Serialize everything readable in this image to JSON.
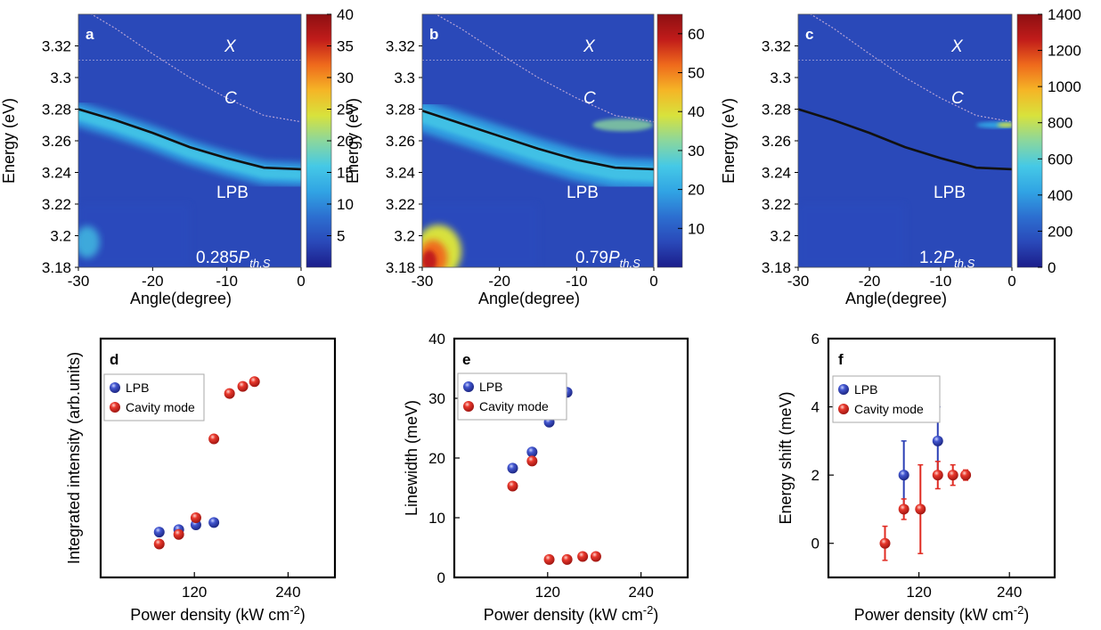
{
  "colorbar_colors": [
    "#1b1d8a",
    "#2a49b9",
    "#2c6fd0",
    "#31a4e4",
    "#45c9e6",
    "#8bd79d",
    "#d8e23c",
    "#f5b526",
    "#ef6a1c",
    "#c11c1a",
    "#8d0f12"
  ],
  "series_colors": {
    "LPB": "#2b3fb5",
    "Cavity mode": "#e02b22"
  },
  "chart_data": [
    {
      "id": "a",
      "type": "heatmap",
      "panel_label": "a",
      "xlabel": "Angle(degree)",
      "ylabel": "Energy (eV)",
      "xlim": [
        -30,
        0
      ],
      "ylim": [
        3.18,
        3.34
      ],
      "xticks": [
        "-30",
        "-20",
        "-10",
        "0"
      ],
      "yticks": [
        "3.18",
        "3.2",
        "3.22",
        "3.24",
        "3.26",
        "3.28",
        "3.3",
        "3.32"
      ],
      "colorbar": {
        "range": [
          0,
          40
        ],
        "ticks": [
          "5",
          "10",
          "15",
          "20",
          "25",
          "30",
          "35",
          "40"
        ]
      },
      "annotations": {
        "x_label": "X",
        "c_label": "C",
        "lpb_label": "LPB",
        "power_prefix": "0.285",
        "power_symbol": "P",
        "power_sub": "th,S"
      },
      "x_line_energy": 3.311,
      "c_curve": [
        [
          -30,
          3.345
        ],
        [
          -25,
          3.331
        ],
        [
          -20,
          3.315
        ],
        [
          -15,
          3.3
        ],
        [
          -10,
          3.287
        ],
        [
          -5,
          3.276
        ],
        [
          0,
          3.272
        ]
      ],
      "lpb_curve": [
        [
          -30,
          3.28
        ],
        [
          -25,
          3.273
        ],
        [
          -20,
          3.265
        ],
        [
          -15,
          3.256
        ],
        [
          -10,
          3.249
        ],
        [
          -5,
          3.243
        ],
        [
          0,
          3.242
        ]
      ]
    },
    {
      "id": "b",
      "type": "heatmap",
      "panel_label": "b",
      "xlabel": "Angle(degree)",
      "ylabel": "Energy (eV)",
      "xlim": [
        -30,
        0
      ],
      "ylim": [
        3.18,
        3.34
      ],
      "xticks": [
        "-30",
        "-20",
        "-10",
        "0"
      ],
      "yticks": [
        "3.18",
        "3.2",
        "3.22",
        "3.24",
        "3.26",
        "3.28",
        "3.3",
        "3.32"
      ],
      "colorbar": {
        "range": [
          0,
          65
        ],
        "ticks": [
          "10",
          "20",
          "30",
          "40",
          "50",
          "60"
        ]
      },
      "annotations": {
        "x_label": "X",
        "c_label": "C",
        "lpb_label": "LPB",
        "power_prefix": "0.79",
        "power_symbol": "P",
        "power_sub": "th,S"
      },
      "x_line_energy": 3.311,
      "c_curve": [
        [
          -30,
          3.345
        ],
        [
          -25,
          3.331
        ],
        [
          -20,
          3.315
        ],
        [
          -15,
          3.3
        ],
        [
          -10,
          3.287
        ],
        [
          -5,
          3.276
        ],
        [
          0,
          3.272
        ]
      ],
      "lpb_curve": [
        [
          -30,
          3.279
        ],
        [
          -25,
          3.271
        ],
        [
          -20,
          3.263
        ],
        [
          -15,
          3.255
        ],
        [
          -10,
          3.248
        ],
        [
          -5,
          3.243
        ],
        [
          0,
          3.242
        ]
      ]
    },
    {
      "id": "c",
      "type": "heatmap",
      "panel_label": "c",
      "xlabel": "Angle(degree)",
      "ylabel": "Energy (eV)",
      "xlim": [
        -30,
        0
      ],
      "ylim": [
        3.18,
        3.34
      ],
      "xticks": [
        "-30",
        "-20",
        "-10",
        "0"
      ],
      "yticks": [
        "3.18",
        "3.2",
        "3.22",
        "3.24",
        "3.26",
        "3.28",
        "3.3",
        "3.32"
      ],
      "colorbar": {
        "range": [
          0,
          1400
        ],
        "ticks": [
          "0",
          "200",
          "400",
          "600",
          "800",
          "1000",
          "1200",
          "1400"
        ]
      },
      "annotations": {
        "x_label": "X",
        "c_label": "C",
        "lpb_label": "LPB",
        "power_prefix": "1.2",
        "power_symbol": "P",
        "power_sub": "th,S"
      },
      "x_line_energy": 3.311,
      "c_curve": [
        [
          -30,
          3.345
        ],
        [
          -25,
          3.331
        ],
        [
          -20,
          3.315
        ],
        [
          -15,
          3.3
        ],
        [
          -10,
          3.287
        ],
        [
          -5,
          3.276
        ],
        [
          0,
          3.272
        ]
      ],
      "lpb_curve": [
        [
          -30,
          3.28
        ],
        [
          -25,
          3.273
        ],
        [
          -20,
          3.265
        ],
        [
          -15,
          3.256
        ],
        [
          -10,
          3.249
        ],
        [
          -5,
          3.243
        ],
        [
          0,
          3.242
        ]
      ]
    },
    {
      "id": "d",
      "type": "scatter",
      "panel_label": "d",
      "xlabel": "Power density (kW cm",
      "xlabel_sup": "-2",
      "xlabel_end": ")",
      "ylabel": "Integrated intensity (arb.units)",
      "xlim": [
        0,
        300
      ],
      "ylim": [
        0,
        100
      ],
      "xticks": [
        120,
        240
      ],
      "yticks": [],
      "series": [
        {
          "name": "LPB",
          "x": [
            75,
            100,
            122,
            145
          ],
          "y": [
            19,
            20,
            22,
            23
          ]
        },
        {
          "name": "Cavity mode",
          "x": [
            75,
            100,
            122,
            145,
            165,
            182,
            197
          ],
          "y": [
            14,
            18,
            25,
            58,
            77,
            80,
            82
          ]
        }
      ]
    },
    {
      "id": "e",
      "type": "scatter",
      "panel_label": "e",
      "xlabel": "Power density (kW cm",
      "xlabel_sup": "-2",
      "xlabel_end": ")",
      "ylabel": "Linewidth (meV)",
      "xlim": [
        0,
        300
      ],
      "ylim": [
        0,
        40
      ],
      "xticks": [
        120,
        240
      ],
      "yticks": [
        0,
        10,
        20,
        30,
        40
      ],
      "series": [
        {
          "name": "LPB",
          "x": [
            75,
            100,
            122,
            145
          ],
          "y": [
            18.3,
            21,
            26,
            31
          ]
        },
        {
          "name": "Cavity mode",
          "x": [
            75,
            100,
            122,
            145,
            165,
            182
          ],
          "y": [
            15.3,
            19.5,
            3,
            3,
            3.5,
            3.5
          ]
        }
      ]
    },
    {
      "id": "f",
      "type": "scatter",
      "panel_label": "f",
      "xlabel": "Power density (kW cm",
      "xlabel_sup": "-2",
      "xlabel_end": ")",
      "ylabel": "Energy shift (meV)",
      "xlim": [
        0,
        300
      ],
      "ylim": [
        -1,
        6
      ],
      "xticks": [
        120,
        240
      ],
      "yticks": [
        0,
        2,
        4,
        6
      ],
      "series": [
        {
          "name": "LPB",
          "x": [
            100,
            145
          ],
          "y": [
            2,
            3
          ],
          "err": [
            1,
            1
          ]
        },
        {
          "name": "Cavity mode",
          "x": [
            75,
            100,
            122,
            145,
            165,
            182
          ],
          "y": [
            0,
            1,
            1,
            2,
            2,
            2
          ],
          "err": [
            0.5,
            0.3,
            1.3,
            0.4,
            0.3,
            0.15
          ]
        }
      ]
    }
  ]
}
